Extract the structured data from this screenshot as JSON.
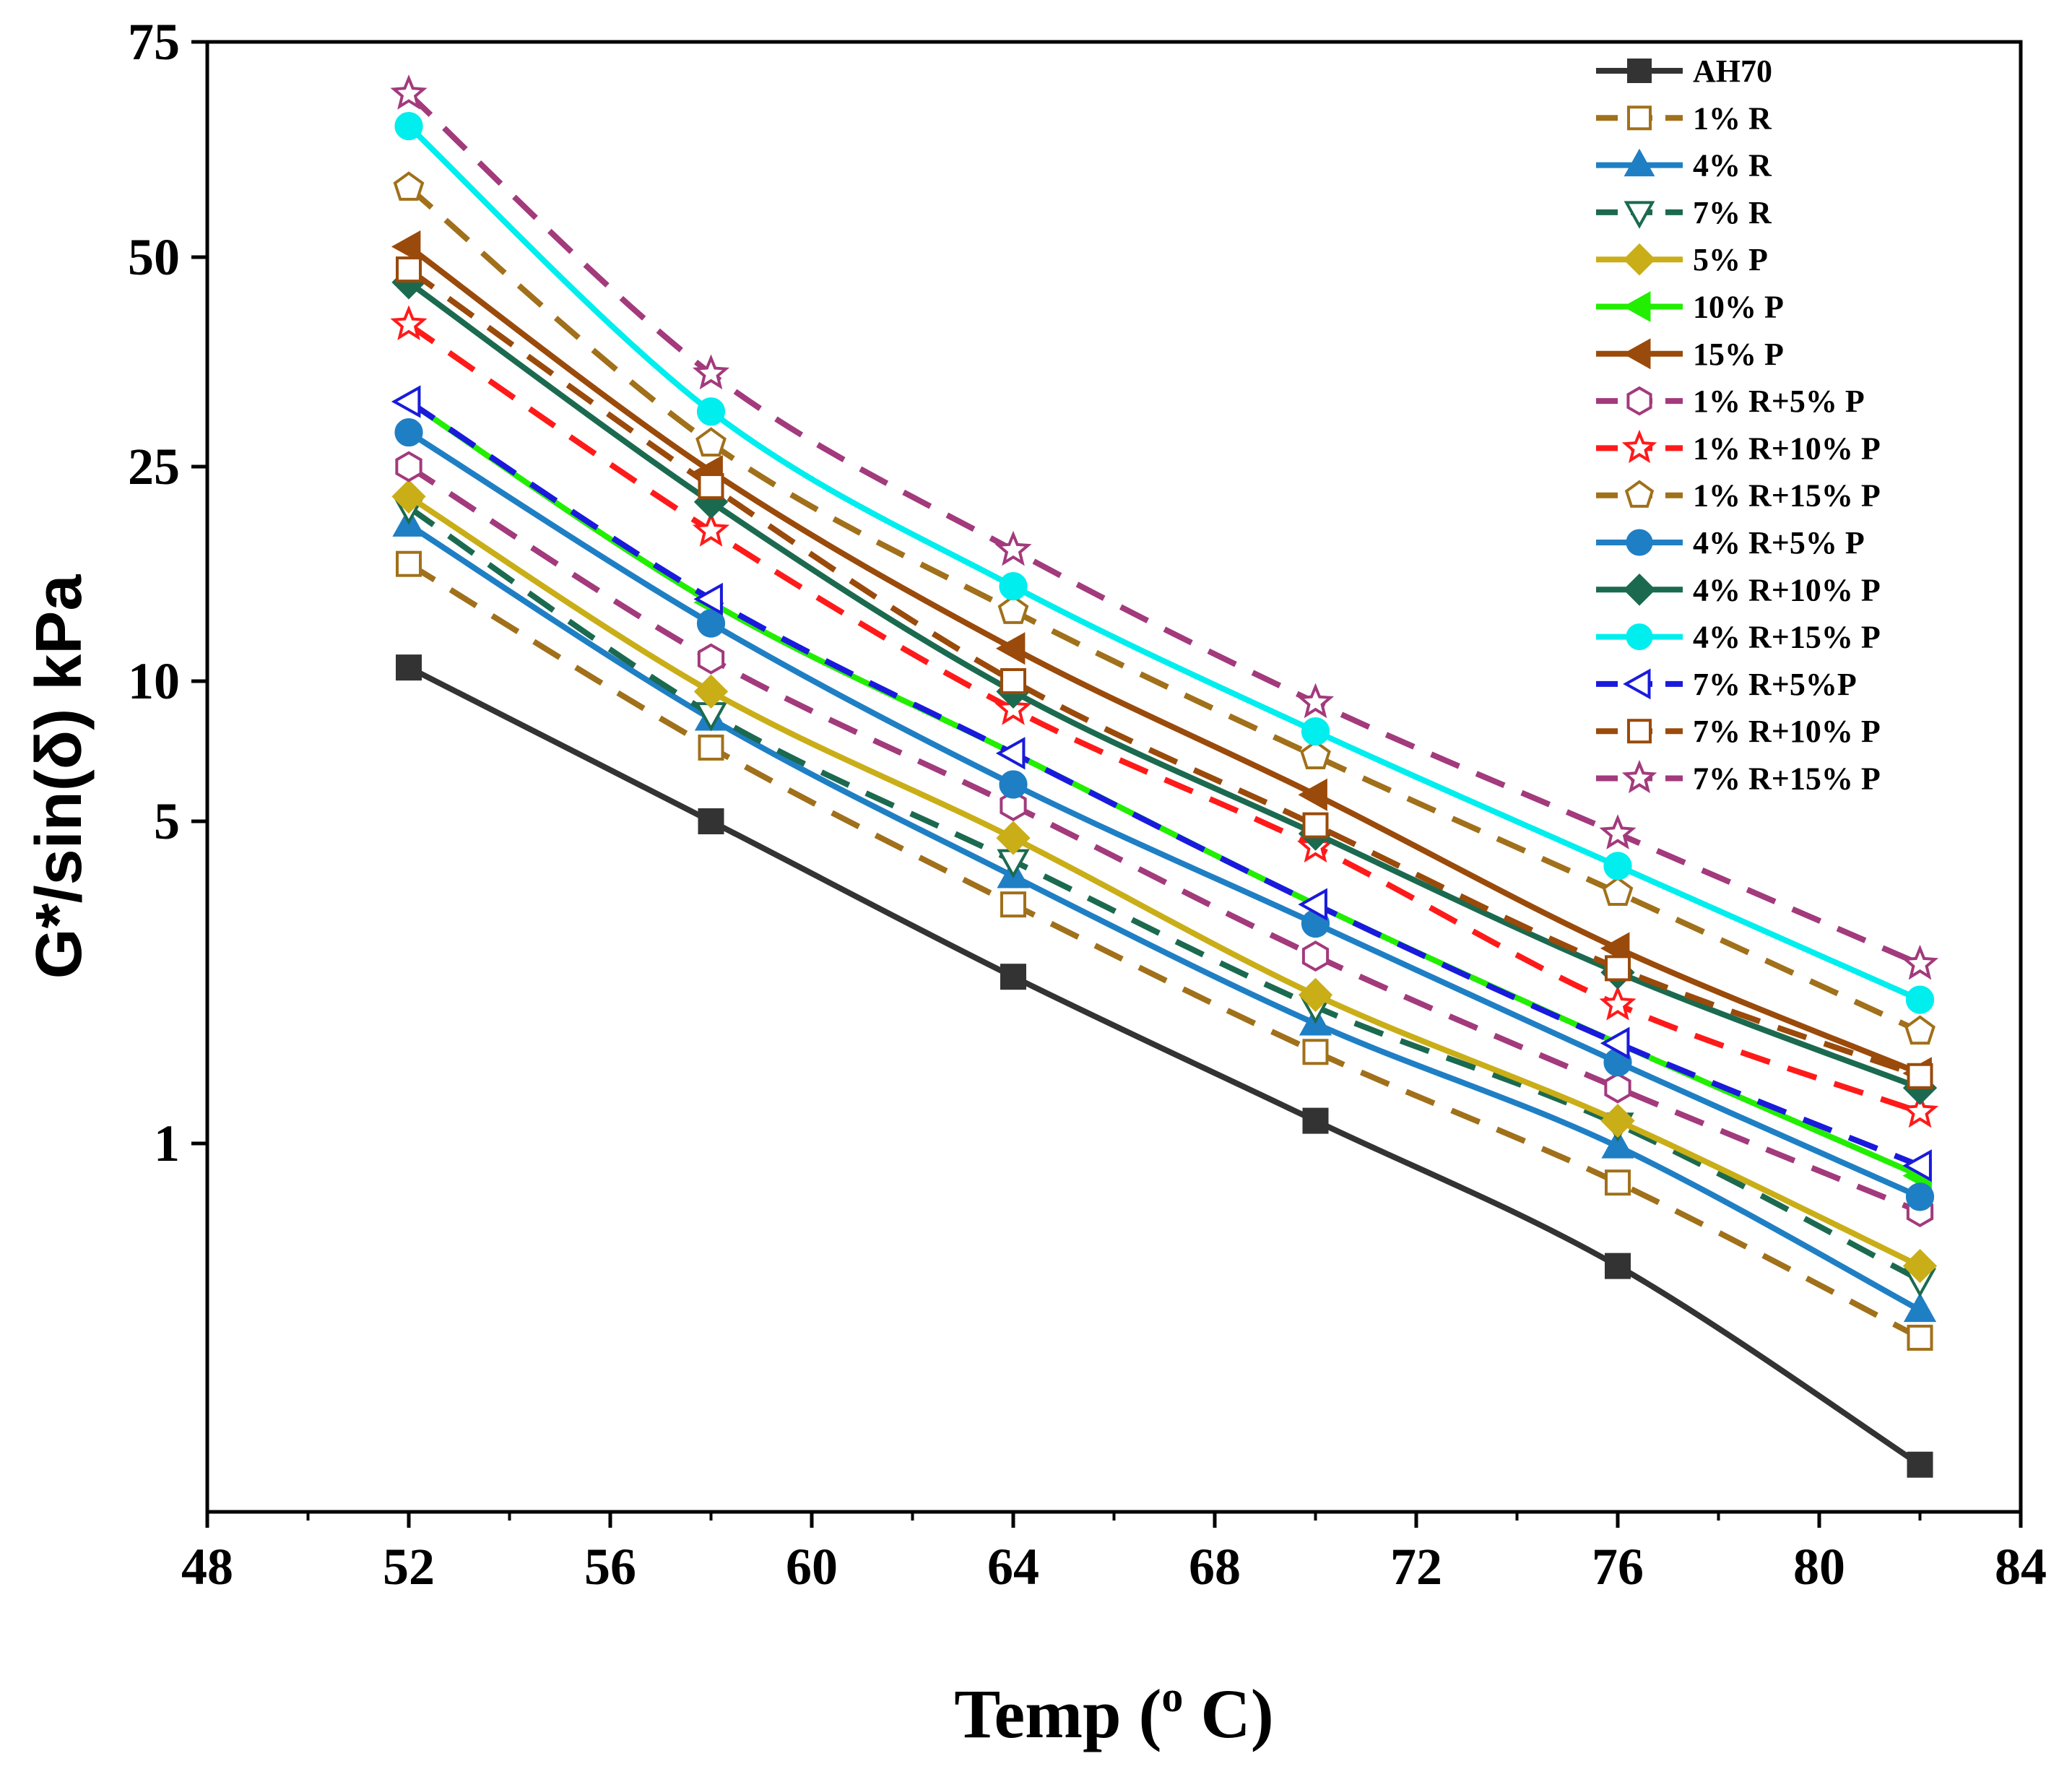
{
  "chart_data": {
    "type": "line",
    "xlabel": "Temp (",
    "xlabel_sup": "o",
    "xlabel_end": " C)",
    "ylabel": "G*/sin(δ) kPa",
    "x": [
      52,
      58,
      64,
      70,
      76,
      82
    ],
    "xlim": [
      48,
      84
    ],
    "xticks": [
      "48",
      "52",
      "56",
      "60",
      "64",
      "68",
      "72",
      "76",
      "80",
      "84"
    ],
    "yticks": [
      "1",
      "5",
      "10",
      "25",
      "50",
      "75"
    ],
    "legend_position": "top-right",
    "series": [
      {
        "name": "AH70",
        "color": "#333333",
        "style": "solid",
        "marker": "square",
        "filled": true,
        "values": [
          10.6,
          5.0,
          2.3,
          1.12,
          0.67,
          0.35
        ]
      },
      {
        "name": "1% R",
        "color": "#a0701a",
        "style": "dashed",
        "marker": "square",
        "filled": false,
        "values": [
          16.5,
          7.2,
          3.3,
          1.58,
          0.88,
          0.53
        ]
      },
      {
        "name": "4% R",
        "color": "#1f7fc4",
        "style": "solid",
        "marker": "triangle-up",
        "filled": true,
        "values": [
          19.5,
          8.3,
          3.8,
          1.82,
          0.99,
          0.58
        ]
      },
      {
        "name": "7% R",
        "color": "#1b6a50",
        "style": "dashed",
        "marker": "triangle-down",
        "filled": false,
        "values": [
          21.0,
          8.5,
          4.1,
          1.98,
          1.1,
          0.64
        ]
      },
      {
        "name": "5% P",
        "color": "#c9ae18",
        "style": "solid",
        "marker": "diamond",
        "filled": true,
        "values": [
          22.0,
          9.5,
          4.6,
          2.1,
          1.12,
          0.67
        ]
      },
      {
        "name": "10% P",
        "color": "#22ee00",
        "style": "solid",
        "marker": "triangle-left",
        "filled": true,
        "values": [
          31.0,
          14.0,
          7.0,
          3.3,
          1.65,
          0.9
        ]
      },
      {
        "name": "15% P",
        "color": "#9a4a0a",
        "style": "solid",
        "marker": "triangle-left",
        "filled": true,
        "values": [
          51.0,
          24.5,
          11.5,
          5.7,
          2.65,
          1.42
        ]
      },
      {
        "name": "1% R+5% P",
        "color": "#a23a7c",
        "style": "dashed",
        "marker": "hexagon",
        "filled": false,
        "values": [
          25.0,
          11.0,
          5.4,
          2.55,
          1.32,
          0.8
        ]
      },
      {
        "name": "1% R+10% P",
        "color": "#ff1a1a",
        "style": "dashed",
        "marker": "star",
        "filled": false,
        "values": [
          40.0,
          19.0,
          8.7,
          4.4,
          2.0,
          1.17
        ]
      },
      {
        "name": "1% R+15% P",
        "color": "#a0701a",
        "style": "dashed",
        "marker": "pentagon",
        "filled": false,
        "values": [
          57.0,
          27.0,
          13.5,
          6.9,
          3.5,
          1.75
        ]
      },
      {
        "name": "4% R+5% P",
        "color": "#1f7fc4",
        "style": "solid",
        "marker": "circle",
        "filled": true,
        "values": [
          28.0,
          12.8,
          6.0,
          3.0,
          1.5,
          0.84
        ]
      },
      {
        "name": "4% R+10% P",
        "color": "#1b6a50",
        "style": "solid",
        "marker": "diamond",
        "filled": true,
        "values": [
          46.0,
          21.5,
          9.5,
          4.7,
          2.35,
          1.32
        ]
      },
      {
        "name": "4% R+15% P",
        "color": "#00eeee",
        "style": "solid",
        "marker": "circle",
        "filled": true,
        "values": [
          64.0,
          30.0,
          15.0,
          7.8,
          4.0,
          2.05
        ]
      },
      {
        "name": "7% R+5%P",
        "color": "#1a1add",
        "style": "dashed",
        "marker": "triangle-left",
        "filled": false,
        "values": [
          31.0,
          14.2,
          7.0,
          3.3,
          1.65,
          0.93
        ]
      },
      {
        "name": "7% R+10% P",
        "color": "#9a4a0a",
        "style": "dashed",
        "marker": "square",
        "filled": false,
        "values": [
          48.0,
          23.0,
          10.0,
          4.9,
          2.4,
          1.4
        ]
      },
      {
        "name": "7% R+15% P",
        "color": "#a23a7c",
        "style": "dashed",
        "marker": "star",
        "filled": false,
        "values": [
          68.0,
          34.0,
          17.5,
          9.0,
          4.7,
          2.45
        ]
      }
    ]
  }
}
